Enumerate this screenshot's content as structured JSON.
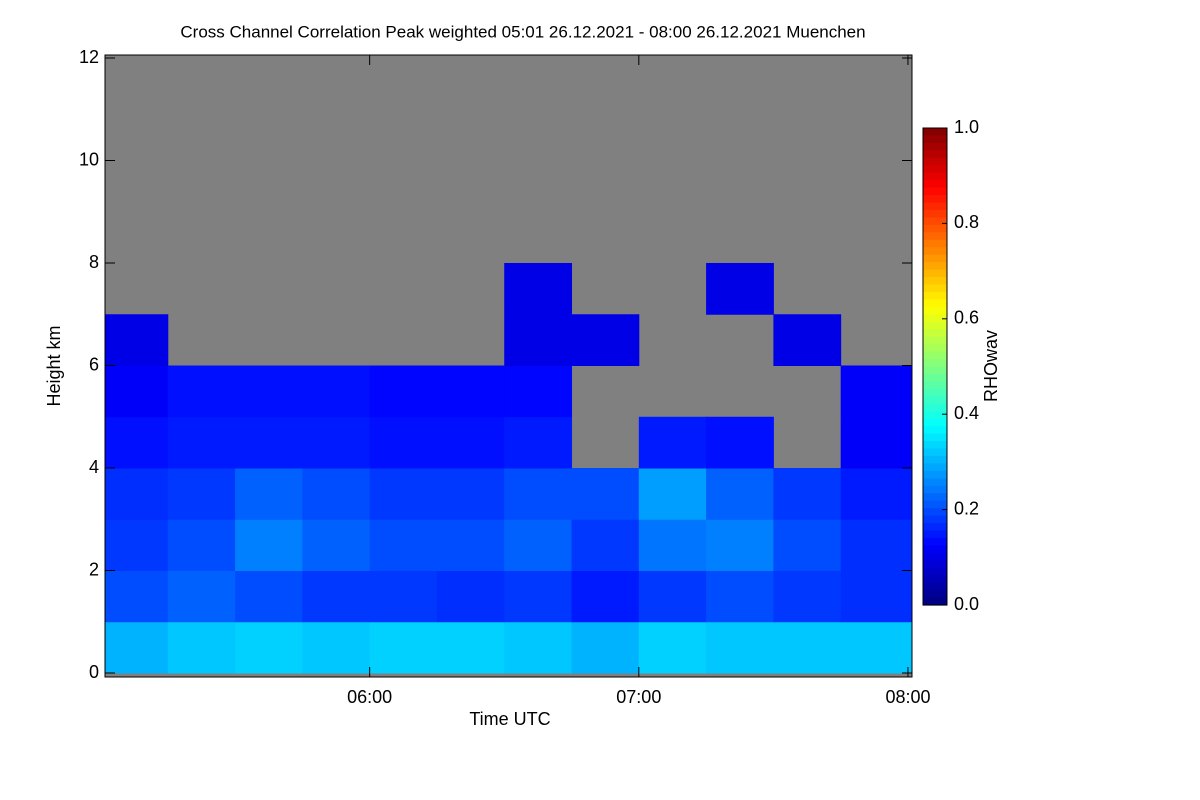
{
  "chart_data": {
    "type": "heatmap",
    "title": "Cross Channel Correlation Peak weighted   05:01 26.12.2021 - 08:00 26.12.2021 Muenchen",
    "x_label": "Time UTC",
    "y_label": "Height km",
    "colorbar_label": "RHOwav",
    "xlim": [
      5.0167,
      8.015
    ],
    "xticks": [
      {
        "value": 6,
        "label": "06:00"
      },
      {
        "value": 7,
        "label": "07:00"
      },
      {
        "value": 8,
        "label": "08:00"
      }
    ],
    "ylim": [
      0,
      12
    ],
    "yticks": [
      0,
      2,
      4,
      6,
      8,
      10,
      12
    ],
    "clim": [
      0,
      1.0
    ],
    "cticks": [
      {
        "value": 0,
        "label": "0.0"
      },
      {
        "value": 0.2,
        "label": "0.2"
      },
      {
        "value": 0.4,
        "label": "0.4"
      },
      {
        "value": 0.6,
        "label": "0.6"
      },
      {
        "value": 0.8,
        "label": "0.8"
      },
      {
        "value": 1,
        "label": "1.0"
      }
    ],
    "colormap": "jet",
    "missing_color": "#808080",
    "xbins": [
      5,
      5.25,
      5.5,
      5.75,
      6,
      6.25,
      6.5,
      6.75,
      7,
      7.25,
      7.5,
      7.75,
      8.015
    ],
    "ybins": [
      0,
      1,
      2,
      3,
      4,
      5,
      6,
      7,
      8,
      9,
      10,
      11,
      12
    ],
    "z": [
      [
        0.3,
        0.32,
        0.33,
        0.32,
        0.33,
        0.33,
        0.32,
        0.3,
        0.33,
        0.32,
        0.32,
        0.32
      ],
      [
        0.2,
        0.22,
        0.2,
        0.18,
        0.18,
        0.17,
        0.18,
        0.15,
        0.18,
        0.2,
        0.18,
        0.17
      ],
      [
        0.18,
        0.2,
        0.25,
        0.22,
        0.2,
        0.2,
        0.22,
        0.18,
        0.24,
        0.25,
        0.2,
        0.17
      ],
      [
        0.17,
        0.18,
        0.22,
        0.2,
        0.18,
        0.18,
        0.2,
        0.2,
        0.28,
        0.22,
        0.18,
        0.15
      ],
      [
        0.14,
        0.15,
        0.15,
        0.15,
        0.14,
        0.14,
        0.15,
        null,
        0.15,
        0.14,
        null,
        0.12
      ],
      [
        0.12,
        0.14,
        0.14,
        0.14,
        0.13,
        0.13,
        0.13,
        null,
        null,
        null,
        null,
        0.12
      ],
      [
        0.1,
        null,
        null,
        null,
        null,
        null,
        0.1,
        0.1,
        null,
        null,
        0.1,
        null
      ],
      [
        null,
        null,
        null,
        null,
        null,
        null,
        0.1,
        null,
        null,
        0.1,
        null,
        null
      ],
      [
        null,
        null,
        null,
        null,
        null,
        null,
        null,
        null,
        null,
        null,
        null,
        null
      ],
      [
        null,
        null,
        null,
        null,
        null,
        null,
        null,
        null,
        null,
        null,
        null,
        null
      ],
      [
        null,
        null,
        null,
        null,
        null,
        null,
        null,
        null,
        null,
        null,
        null,
        null
      ],
      [
        null,
        null,
        null,
        null,
        null,
        null,
        null,
        null,
        null,
        null,
        null,
        null
      ]
    ]
  }
}
